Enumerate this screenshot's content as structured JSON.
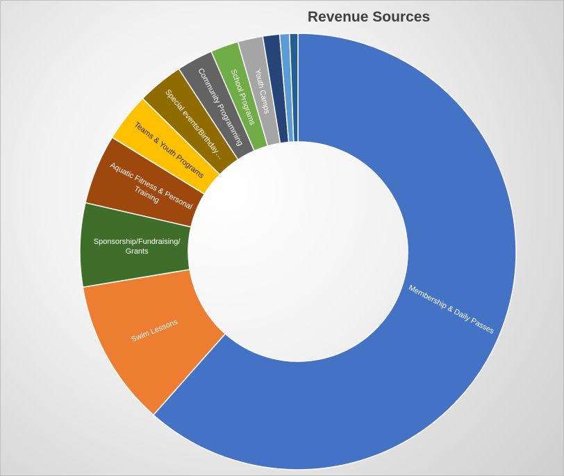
{
  "chart_data": {
    "type": "pie",
    "title": "Revenue Sources",
    "hole": true,
    "legend": "none",
    "slices": [
      {
        "label": "Membership & Daily Passes",
        "value": 59.5,
        "color": "#4472C4"
      },
      {
        "label": "Swim Lessons",
        "value": 10.5,
        "color": "#ED7D31"
      },
      {
        "label": "Sponsorship/Fundraising/Grants",
        "value": 6.0,
        "color": "#3F6E2A"
      },
      {
        "label": "Aquatic Fitness & Personal Training",
        "value": 5.0,
        "color": "#9E480E"
      },
      {
        "label": "Teams & Youth Programs",
        "value": 3.5,
        "color": "#FFC000"
      },
      {
        "label": "Special events/Birthday…",
        "value": 3.3,
        "color": "#8F6B00"
      },
      {
        "label": "Community Programming",
        "value": 2.6,
        "color": "#636363"
      },
      {
        "label": "School Programs",
        "value": 2.0,
        "color": "#70AD47"
      },
      {
        "label": "Youth Camps",
        "value": 1.8,
        "color": "#A5A5A5"
      },
      {
        "label": "",
        "value": 1.2,
        "color": "#264478"
      },
      {
        "label": "",
        "value": 0.7,
        "color": "#5B9BD5"
      },
      {
        "label": "",
        "value": 0.6,
        "color": "#255E91"
      }
    ]
  }
}
